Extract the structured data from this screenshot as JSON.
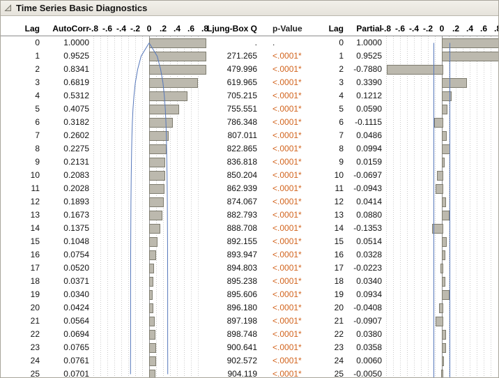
{
  "title": "Time Series Basic Diagnostics",
  "header": {
    "lag": "Lag",
    "autocorr": "AutoCorr",
    "ljung_box": "Ljung-Box Q",
    "p_value": "p-Value",
    "lag2": "Lag",
    "partial": "Partial"
  },
  "axis_ticks": [
    "-.8",
    "-.6",
    "-.4",
    "-.2",
    "0",
    ".2",
    ".4",
    ".6",
    ".8"
  ],
  "colors": {
    "titlebar_bg": "#e9e6df",
    "bar_fill": "#bcb9ae",
    "bar_border": "#7e7c6f",
    "conf_line": "#5577bb",
    "p_value_significant": "#d2631c",
    "grid_dot": "#c9c9c9",
    "zero_line": "#8e8e8e",
    "header_rule": "#8c8c8c"
  },
  "rows": [
    {
      "lag": "0",
      "autocorr": "1.0000",
      "ljung_box": ".",
      "p_value": ".",
      "partial": "1.0000",
      "significant": false
    },
    {
      "lag": "1",
      "autocorr": "0.9525",
      "ljung_box": "271.265",
      "p_value": "<.0001*",
      "partial": "0.9525",
      "significant": true
    },
    {
      "lag": "2",
      "autocorr": "0.8341",
      "ljung_box": "479.996",
      "p_value": "<.0001*",
      "partial": "-0.7880",
      "significant": true
    },
    {
      "lag": "3",
      "autocorr": "0.6819",
      "ljung_box": "619.965",
      "p_value": "<.0001*",
      "partial": "0.3390",
      "significant": true
    },
    {
      "lag": "4",
      "autocorr": "0.5312",
      "ljung_box": "705.215",
      "p_value": "<.0001*",
      "partial": "0.1212",
      "significant": true
    },
    {
      "lag": "5",
      "autocorr": "0.4075",
      "ljung_box": "755.551",
      "p_value": "<.0001*",
      "partial": "0.0590",
      "significant": true
    },
    {
      "lag": "6",
      "autocorr": "0.3182",
      "ljung_box": "786.348",
      "p_value": "<.0001*",
      "partial": "-0.1115",
      "significant": true
    },
    {
      "lag": "7",
      "autocorr": "0.2602",
      "ljung_box": "807.011",
      "p_value": "<.0001*",
      "partial": "0.0486",
      "significant": true
    },
    {
      "lag": "8",
      "autocorr": "0.2275",
      "ljung_box": "822.865",
      "p_value": "<.0001*",
      "partial": "0.0994",
      "significant": true
    },
    {
      "lag": "9",
      "autocorr": "0.2131",
      "ljung_box": "836.818",
      "p_value": "<.0001*",
      "partial": "0.0159",
      "significant": true
    },
    {
      "lag": "10",
      "autocorr": "0.2083",
      "ljung_box": "850.204",
      "p_value": "<.0001*",
      "partial": "-0.0697",
      "significant": true
    },
    {
      "lag": "11",
      "autocorr": "0.2028",
      "ljung_box": "862.939",
      "p_value": "<.0001*",
      "partial": "-0.0943",
      "significant": true
    },
    {
      "lag": "12",
      "autocorr": "0.1893",
      "ljung_box": "874.067",
      "p_value": "<.0001*",
      "partial": "0.0414",
      "significant": true
    },
    {
      "lag": "13",
      "autocorr": "0.1673",
      "ljung_box": "882.793",
      "p_value": "<.0001*",
      "partial": "0.0880",
      "significant": true
    },
    {
      "lag": "14",
      "autocorr": "0.1375",
      "ljung_box": "888.708",
      "p_value": "<.0001*",
      "partial": "-0.1353",
      "significant": true
    },
    {
      "lag": "15",
      "autocorr": "0.1048",
      "ljung_box": "892.155",
      "p_value": "<.0001*",
      "partial": "0.0514",
      "significant": true
    },
    {
      "lag": "16",
      "autocorr": "0.0754",
      "ljung_box": "893.947",
      "p_value": "<.0001*",
      "partial": "0.0328",
      "significant": true
    },
    {
      "lag": "17",
      "autocorr": "0.0520",
      "ljung_box": "894.803",
      "p_value": "<.0001*",
      "partial": "-0.0223",
      "significant": true
    },
    {
      "lag": "18",
      "autocorr": "0.0371",
      "ljung_box": "895.238",
      "p_value": "<.0001*",
      "partial": "0.0340",
      "significant": true
    },
    {
      "lag": "19",
      "autocorr": "0.0340",
      "ljung_box": "895.606",
      "p_value": "<.0001*",
      "partial": "0.0934",
      "significant": true
    },
    {
      "lag": "20",
      "autocorr": "0.0424",
      "ljung_box": "896.180",
      "p_value": "<.0001*",
      "partial": "-0.0408",
      "significant": true
    },
    {
      "lag": "21",
      "autocorr": "0.0564",
      "ljung_box": "897.198",
      "p_value": "<.0001*",
      "partial": "-0.0907",
      "significant": true
    },
    {
      "lag": "22",
      "autocorr": "0.0694",
      "ljung_box": "898.748",
      "p_value": "<.0001*",
      "partial": "0.0380",
      "significant": true
    },
    {
      "lag": "23",
      "autocorr": "0.0765",
      "ljung_box": "900.641",
      "p_value": "<.0001*",
      "partial": "0.0358",
      "significant": true
    },
    {
      "lag": "24",
      "autocorr": "0.0761",
      "ljung_box": "902.572",
      "p_value": "<.0001*",
      "partial": "0.0060",
      "significant": true
    },
    {
      "lag": "25",
      "autocorr": "0.0701",
      "ljung_box": "904.119",
      "p_value": "<.0001*",
      "partial": "-0.0050",
      "significant": true
    }
  ],
  "chart_data": [
    {
      "type": "bar",
      "name": "autocorrelation",
      "orientation": "horizontal",
      "xlim": [
        -0.8,
        0.8
      ],
      "tick_labels": [
        "-.8",
        "-.6",
        "-.4",
        "-.2",
        "0",
        ".2",
        ".4",
        ".6",
        ".8"
      ],
      "lags": [
        0,
        1,
        2,
        3,
        4,
        5,
        6,
        7,
        8,
        9,
        10,
        11,
        12,
        13,
        14,
        15,
        16,
        17,
        18,
        19,
        20,
        21,
        22,
        23,
        24,
        25
      ],
      "values": [
        1.0,
        0.9525,
        0.8341,
        0.6819,
        0.5312,
        0.4075,
        0.3182,
        0.2602,
        0.2275,
        0.2131,
        0.2083,
        0.2028,
        0.1893,
        0.1673,
        0.1375,
        0.1048,
        0.0754,
        0.052,
        0.0371,
        0.034,
        0.0424,
        0.0564,
        0.0694,
        0.0765,
        0.0761,
        0.0701
      ],
      "conf_bounds": [
        0,
        0.115,
        0.165,
        0.198,
        0.218,
        0.232,
        0.241,
        0.247,
        0.251,
        0.254,
        0.257,
        0.259,
        0.261,
        0.262,
        0.263,
        0.264,
        0.265,
        0.265,
        0.266,
        0.266,
        0.266,
        0.266,
        0.266,
        0.266,
        0.267,
        0.267
      ]
    },
    {
      "type": "bar",
      "name": "partial-autocorrelation",
      "orientation": "horizontal",
      "xlim": [
        -0.8,
        0.8
      ],
      "tick_labels": [
        "-.8",
        "-.6",
        "-.4",
        "-.2",
        "0",
        ".2",
        ".4",
        ".6",
        ".8"
      ],
      "lags": [
        0,
        1,
        2,
        3,
        4,
        5,
        6,
        7,
        8,
        9,
        10,
        11,
        12,
        13,
        14,
        15,
        16,
        17,
        18,
        19,
        20,
        21,
        22,
        23,
        24,
        25
      ],
      "values": [
        1.0,
        0.9525,
        -0.788,
        0.339,
        0.1212,
        0.059,
        -0.1115,
        0.0486,
        0.0994,
        0.0159,
        -0.0697,
        -0.0943,
        0.0414,
        0.088,
        -0.1353,
        0.0514,
        0.0328,
        -0.0223,
        0.034,
        0.0934,
        -0.0408,
        -0.0907,
        0.038,
        0.0358,
        0.006,
        -0.005
      ],
      "conf_lines": [
        -0.115,
        0.115
      ]
    }
  ]
}
